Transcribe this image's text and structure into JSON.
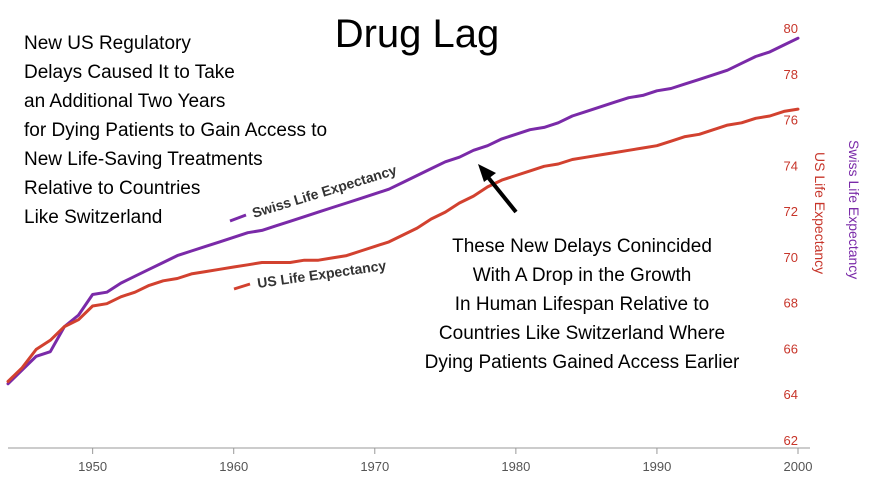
{
  "chart_data": {
    "type": "line",
    "title": "Drug Lag",
    "annotation_left": [
      "New US Regulatory",
      "Delays Caused It to Take",
      "an Additional Two Years",
      "for Dying Patients to Gain Access to",
      "New Life-Saving Treatments",
      "Relative to Countries",
      "Like Switzerland"
    ],
    "annotation_right": [
      "These New Delays Conincided",
      "With A Drop in the Growth",
      "In Human Lifespan Relative to",
      "Countries Like Switzerland Where",
      "Dying Patients Gained Access Earlier"
    ],
    "ylabel_us": "US Life Expectancy",
    "ylabel_swiss": "Swiss Life Expectancy",
    "xlim": [
      1944,
      2000
    ],
    "ylim": [
      62,
      80
    ],
    "x_ticks": [
      1950,
      1960,
      1970,
      1980,
      1990,
      2000
    ],
    "y_ticks": [
      62,
      64,
      66,
      68,
      70,
      72,
      74,
      76,
      78,
      80
    ],
    "series": [
      {
        "name": "Swiss Life Expectancy",
        "color": "#7a2aa8",
        "x": [
          1944,
          1945,
          1946,
          1947,
          1948,
          1949,
          1950,
          1951,
          1952,
          1953,
          1954,
          1955,
          1956,
          1957,
          1958,
          1959,
          1960,
          1961,
          1962,
          1963,
          1964,
          1965,
          1966,
          1967,
          1968,
          1969,
          1970,
          1971,
          1972,
          1973,
          1974,
          1975,
          1976,
          1977,
          1978,
          1979,
          1980,
          1981,
          1982,
          1983,
          1984,
          1985,
          1986,
          1987,
          1988,
          1989,
          1990,
          1991,
          1992,
          1993,
          1994,
          1995,
          1996,
          1997,
          1998,
          1999,
          2000
        ],
        "values": [
          64.5,
          65.1,
          65.7,
          65.9,
          67.0,
          67.5,
          68.4,
          68.5,
          68.9,
          69.2,
          69.5,
          69.8,
          70.1,
          70.3,
          70.5,
          70.7,
          70.9,
          71.1,
          71.2,
          71.4,
          71.6,
          71.8,
          72.0,
          72.2,
          72.4,
          72.6,
          72.8,
          73.0,
          73.3,
          73.6,
          73.9,
          74.2,
          74.4,
          74.7,
          74.9,
          75.2,
          75.4,
          75.6,
          75.7,
          75.9,
          76.2,
          76.4,
          76.6,
          76.8,
          77.0,
          77.1,
          77.3,
          77.4,
          77.6,
          77.8,
          78.0,
          78.2,
          78.5,
          78.8,
          79.0,
          79.3,
          79.6
        ]
      },
      {
        "name": "US Life Expectancy",
        "color": "#d2412f",
        "x": [
          1944,
          1945,
          1946,
          1947,
          1948,
          1949,
          1950,
          1951,
          1952,
          1953,
          1954,
          1955,
          1956,
          1957,
          1958,
          1959,
          1960,
          1961,
          1962,
          1963,
          1964,
          1965,
          1966,
          1967,
          1968,
          1969,
          1970,
          1971,
          1972,
          1973,
          1974,
          1975,
          1976,
          1977,
          1978,
          1979,
          1980,
          1981,
          1982,
          1983,
          1984,
          1985,
          1986,
          1987,
          1988,
          1989,
          1990,
          1991,
          1992,
          1993,
          1994,
          1995,
          1996,
          1997,
          1998,
          1999,
          2000
        ],
        "values": [
          64.6,
          65.2,
          66.0,
          66.4,
          67.0,
          67.3,
          67.9,
          68.0,
          68.3,
          68.5,
          68.8,
          69.0,
          69.1,
          69.3,
          69.4,
          69.5,
          69.6,
          69.7,
          69.8,
          69.8,
          69.8,
          69.9,
          69.9,
          70.0,
          70.1,
          70.3,
          70.5,
          70.7,
          71.0,
          71.3,
          71.7,
          72.0,
          72.4,
          72.7,
          73.1,
          73.4,
          73.6,
          73.8,
          74.0,
          74.1,
          74.3,
          74.4,
          74.5,
          74.6,
          74.7,
          74.8,
          74.9,
          75.1,
          75.3,
          75.4,
          75.6,
          75.8,
          75.9,
          76.1,
          76.2,
          76.4,
          76.5
        ]
      }
    ],
    "grid": false
  }
}
